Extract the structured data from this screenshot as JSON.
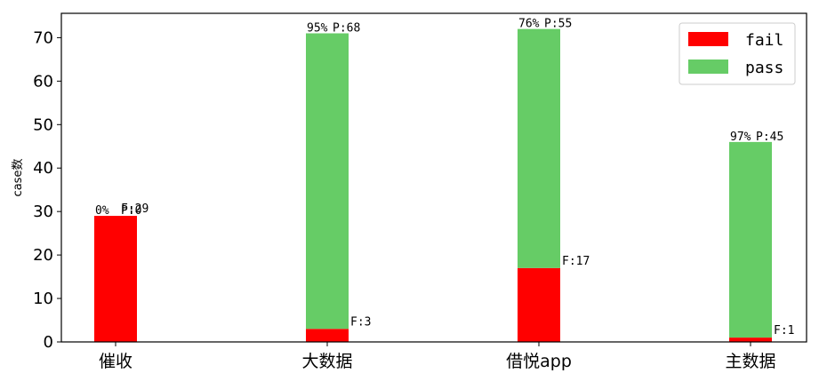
{
  "chart_data": {
    "type": "bar",
    "stacked": true,
    "categories": [
      "催收",
      "大数据",
      "借悦app",
      "主数据"
    ],
    "series": [
      {
        "name": "fail",
        "color": "#ff0000",
        "values": [
          29,
          3,
          17,
          1
        ]
      },
      {
        "name": "pass",
        "color": "#66cc66",
        "values": [
          0,
          68,
          55,
          45
        ]
      }
    ],
    "percent_labels": [
      "0%",
      "95%",
      "76%",
      "97%"
    ],
    "pass_labels": [
      "P:0",
      "P:68",
      "P:55",
      "P:45"
    ],
    "fail_labels": [
      "F:29",
      "F:3",
      "F:17",
      "F:1"
    ],
    "ylabel": "case数",
    "xlabel": "",
    "ylim": [
      0,
      75.6
    ],
    "yticks": [
      0,
      10,
      20,
      30,
      40,
      50,
      60,
      70
    ],
    "legend_position": "top-right",
    "grid": false
  }
}
